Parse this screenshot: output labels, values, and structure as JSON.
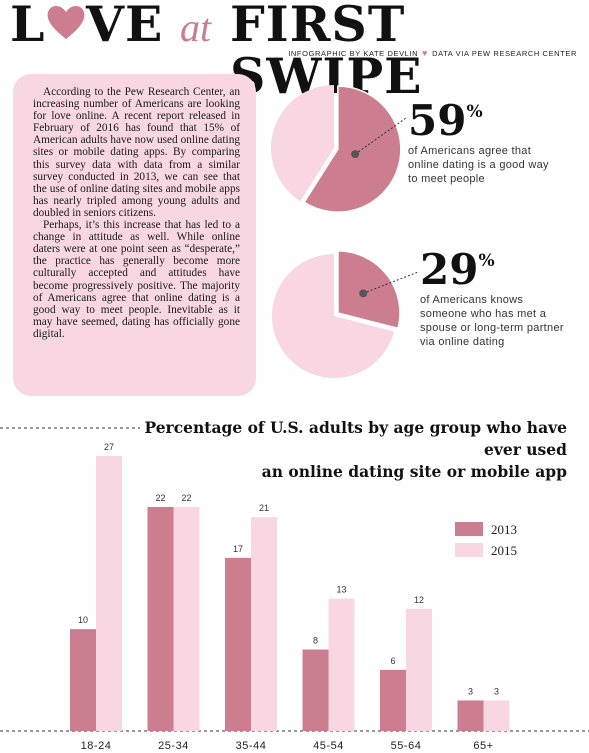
{
  "header": {
    "title_left": "L",
    "title_heart": "heart-icon",
    "title_ve": "VE",
    "title_at": "at",
    "title_right": "FIRST SWIPE",
    "credit_left": "INFOGRAPHIC BY KATE DEVLIN",
    "credit_right": "DATA VIA PEW RESEARCH CENTER"
  },
  "body_text": {
    "p1": "According to the Pew Research Center, an increasing number of Americans are looking for love online. A recent report released in February of 2016 has found that 15% of American adults have now used online dating sites or mobile dating apps. By comparing this survey data with data from a similar survey conducted in 2013, we can see that the use of online dating sites and mobile apps has nearly tripled among young adults and doubled in seniors citizens.",
    "p2": "Perhaps, it’s this increase that has led to a change in attitude as well. While online daters were at one point seen as “desperate,” the practice has generally become more culturally accepted and attitudes have become progressively positive. The majority of Americans agree that online dating is a good way to meet people. Inevitable as it may have seemed, dating has officially gone digital."
  },
  "stats": [
    {
      "value": 59,
      "num": "59",
      "pct": "%",
      "line1": "of Americans agree that",
      "line2": "online dating is a good way",
      "line3": "to meet people"
    },
    {
      "value": 29,
      "num": "29",
      "pct": "%",
      "line1": "of Americans knows",
      "line2": "someone who has met a",
      "line3": "spouse or long-term partner",
      "line4": "via online dating"
    }
  ],
  "colors": {
    "dark_pink": "#cc7d8f",
    "light_pink": "#f8d7e2",
    "accent": "#c97e90"
  },
  "chart_title": {
    "line1": "Percentage of U.S. adults by age group who have ever used",
    "line2": "an online dating site or mobile app"
  },
  "chart_data": {
    "type": "bar",
    "title": "Percentage of U.S. adults by age group who have ever used an online dating site or mobile app",
    "categories": [
      "18-24",
      "25-34",
      "35-44",
      "45-54",
      "55-64",
      "65+"
    ],
    "series": [
      {
        "name": "2013",
        "values": [
          10,
          22,
          17,
          8,
          6,
          3
        ],
        "color": "#cc7d8f"
      },
      {
        "name": "2015",
        "values": [
          27,
          22,
          21,
          13,
          12,
          3
        ],
        "color": "#f8d7e2"
      }
    ],
    "ylim": [
      0,
      27
    ],
    "legend": "right",
    "grid": false
  }
}
